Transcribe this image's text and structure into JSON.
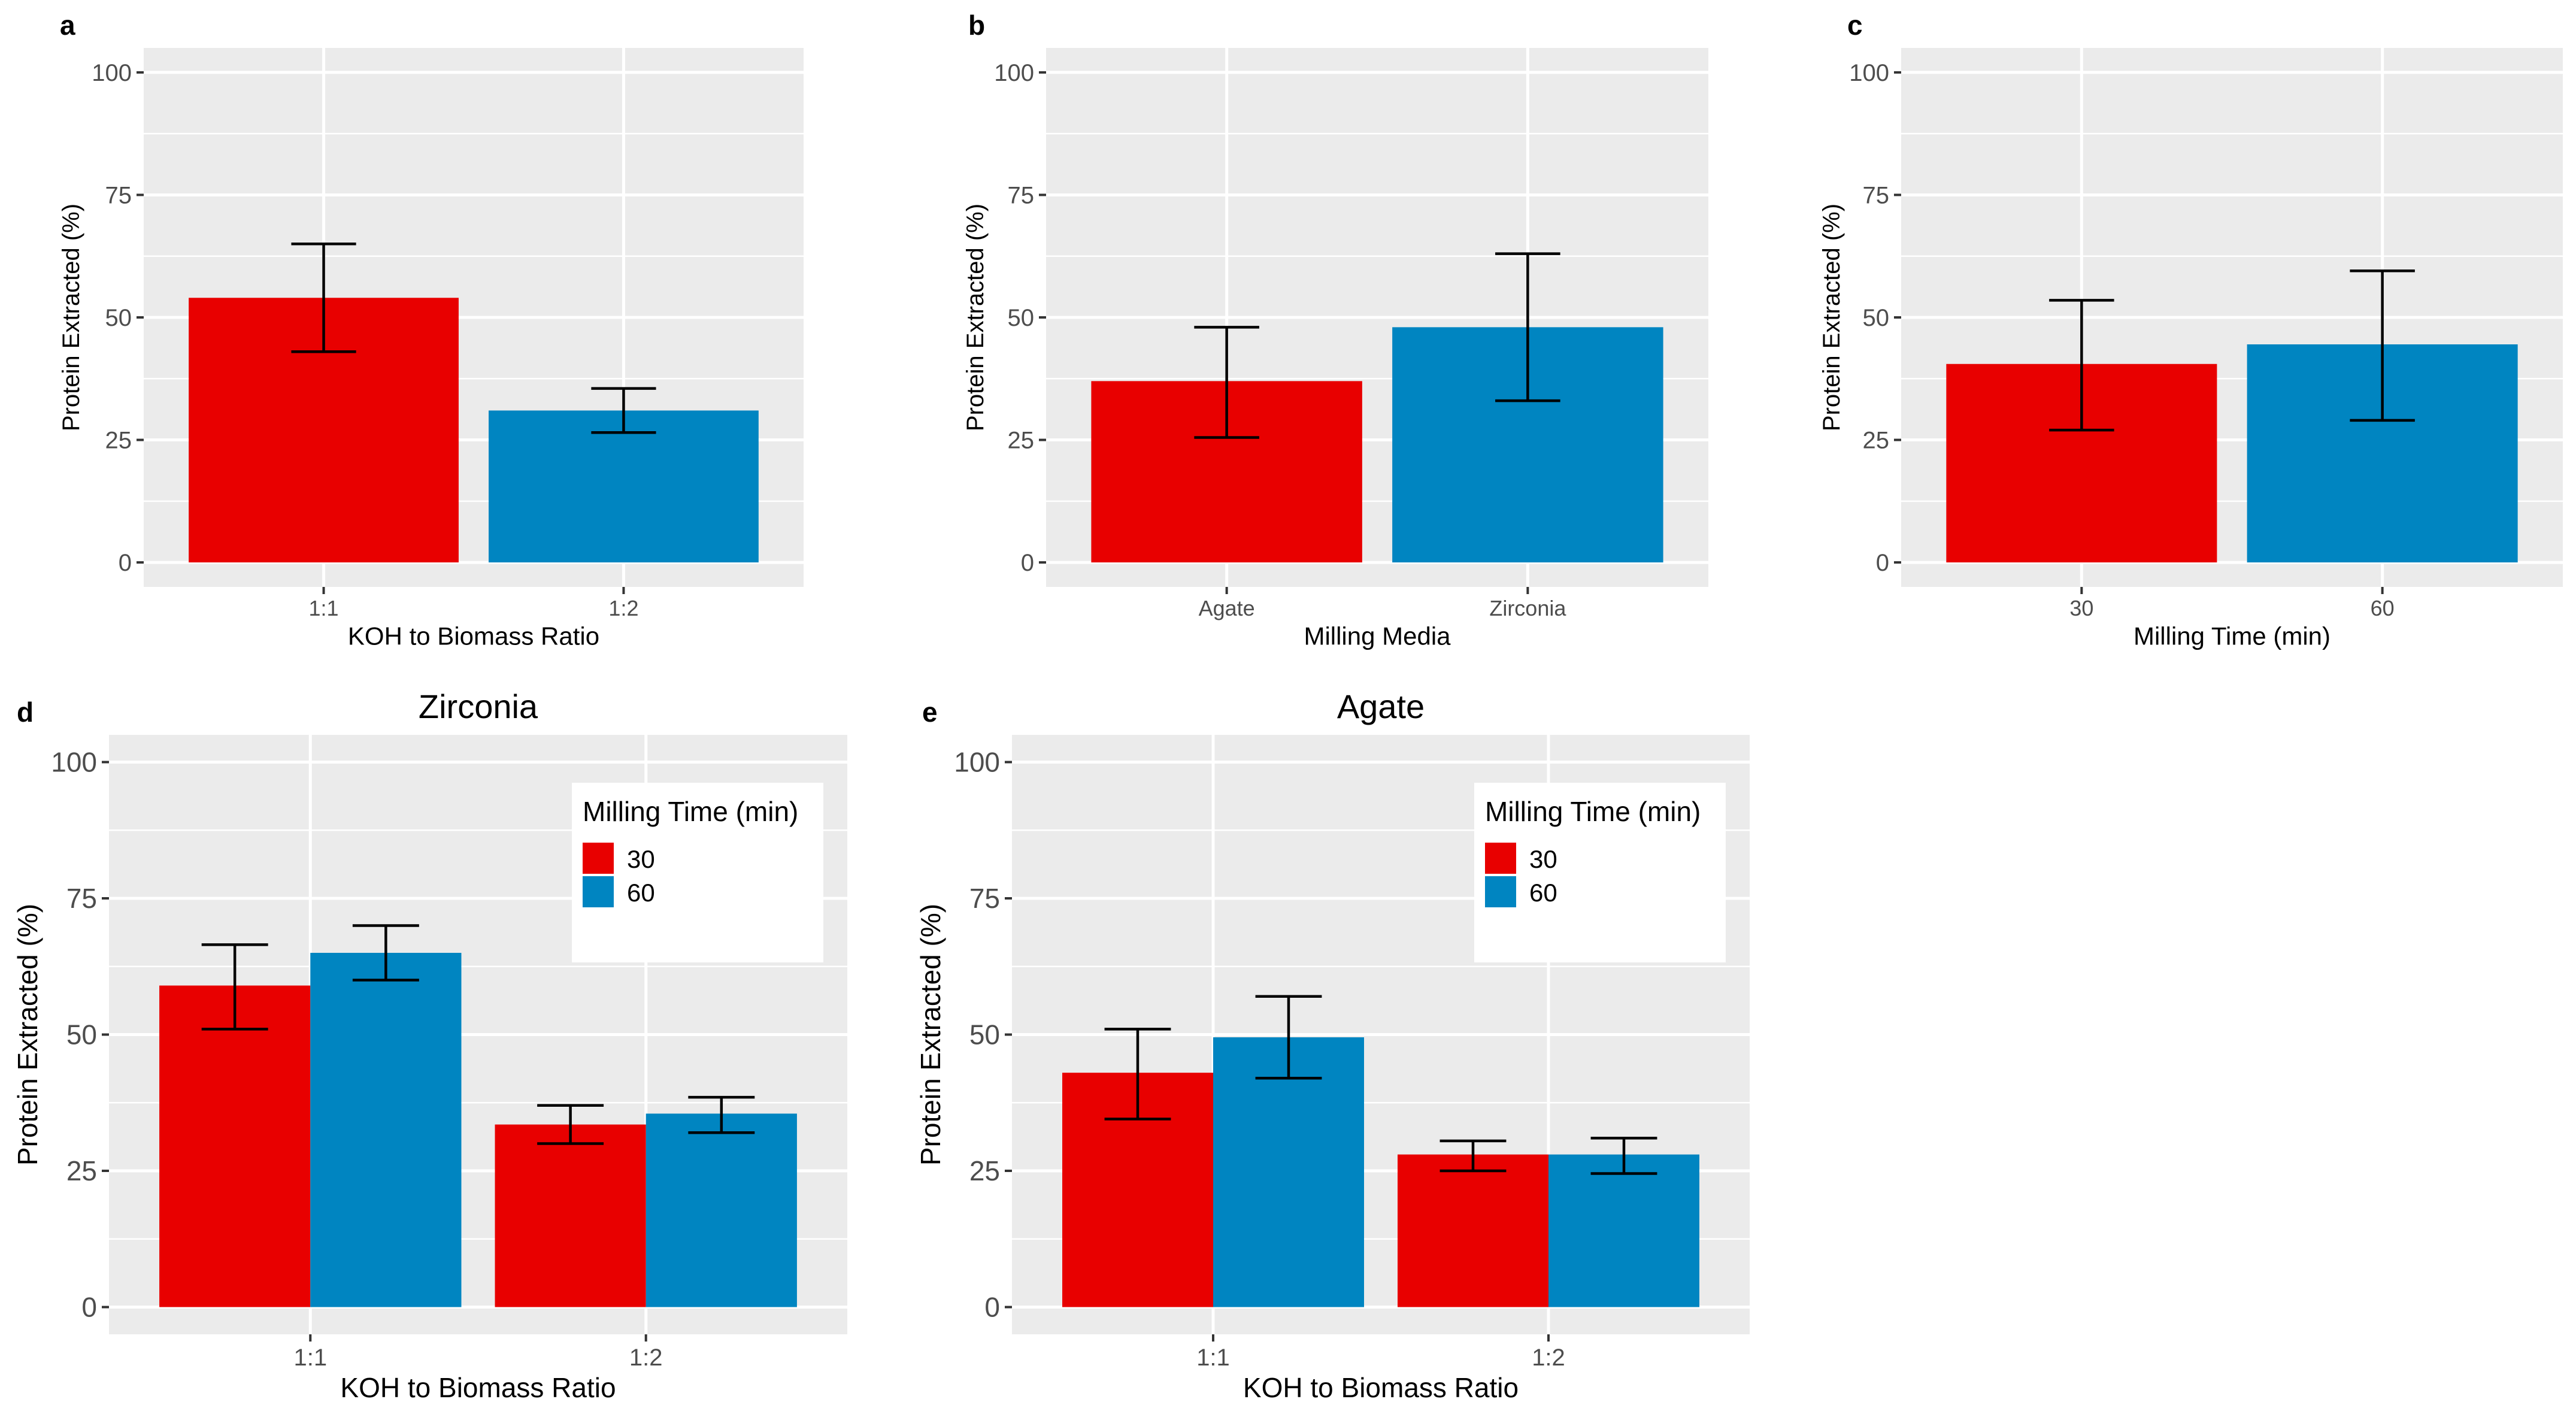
{
  "colors": {
    "series_30": "#e80000",
    "series_60": "#0085c1",
    "panel_background": "#ebebeb",
    "grid": "#ffffff"
  },
  "chart_data": [
    {
      "panel": "a",
      "type": "bar",
      "title": "",
      "xlabel": "KOH to Biomass Ratio",
      "ylabel": "Protein Extracted (%)",
      "ylim": [
        0,
        100
      ],
      "yticks": [
        0,
        25,
        50,
        75,
        100
      ],
      "categories": [
        "1:1",
        "1:2"
      ],
      "series": [
        {
          "name": "",
          "values": [
            54,
            31
          ],
          "err_low": [
            43,
            26.5
          ],
          "err_high": [
            65,
            35.5
          ],
          "colors": [
            "#e80000",
            "#0085c1"
          ]
        }
      ]
    },
    {
      "panel": "b",
      "type": "bar",
      "title": "",
      "xlabel": "Milling Media",
      "ylabel": "Protein Extracted (%)",
      "ylim": [
        0,
        100
      ],
      "yticks": [
        0,
        25,
        50,
        75,
        100
      ],
      "categories": [
        "Agate",
        "Zirconia"
      ],
      "series": [
        {
          "name": "",
          "values": [
            37,
            48
          ],
          "err_low": [
            25.5,
            33
          ],
          "err_high": [
            48,
            63
          ],
          "colors": [
            "#e80000",
            "#0085c1"
          ]
        }
      ]
    },
    {
      "panel": "c",
      "type": "bar",
      "title": "",
      "xlabel": "Milling Time (min)",
      "ylabel": "Protein Extracted (%)",
      "ylim": [
        0,
        100
      ],
      "yticks": [
        0,
        25,
        50,
        75,
        100
      ],
      "categories": [
        "30",
        "60"
      ],
      "series": [
        {
          "name": "",
          "values": [
            40.5,
            44.5
          ],
          "err_low": [
            27,
            29
          ],
          "err_high": [
            53.5,
            59.5
          ],
          "colors": [
            "#e80000",
            "#0085c1"
          ]
        }
      ]
    },
    {
      "panel": "d",
      "type": "bar",
      "title": "Zirconia",
      "xlabel": "KOH to Biomass Ratio",
      "ylabel": "Protein Extracted (%)",
      "ylim": [
        0,
        100
      ],
      "yticks": [
        0,
        25,
        50,
        75,
        100
      ],
      "categories": [
        "1:1",
        "1:2"
      ],
      "legend": {
        "title": "Milling Time (min)",
        "position": "top-right"
      },
      "series": [
        {
          "name": "30",
          "values": [
            59,
            33.5
          ],
          "err_low": [
            51,
            30
          ],
          "err_high": [
            66.5,
            37
          ],
          "color": "#e80000"
        },
        {
          "name": "60",
          "values": [
            65,
            35.5
          ],
          "err_low": [
            60,
            32
          ],
          "err_high": [
            70,
            38.5
          ],
          "color": "#0085c1"
        }
      ]
    },
    {
      "panel": "e",
      "type": "bar",
      "title": "Agate",
      "xlabel": "KOH to Biomass Ratio",
      "ylabel": "Protein Extracted (%)",
      "ylim": [
        0,
        100
      ],
      "yticks": [
        0,
        25,
        50,
        75,
        100
      ],
      "categories": [
        "1:1",
        "1:2"
      ],
      "legend": {
        "title": "Milling Time (min)",
        "position": "top-right"
      },
      "series": [
        {
          "name": "30",
          "values": [
            43,
            28
          ],
          "err_low": [
            34.5,
            25
          ],
          "err_high": [
            51,
            30.5
          ],
          "color": "#e80000"
        },
        {
          "name": "60",
          "values": [
            49.5,
            28
          ],
          "err_low": [
            42,
            24.5
          ],
          "err_high": [
            57,
            31
          ],
          "color": "#0085c1"
        }
      ]
    }
  ]
}
